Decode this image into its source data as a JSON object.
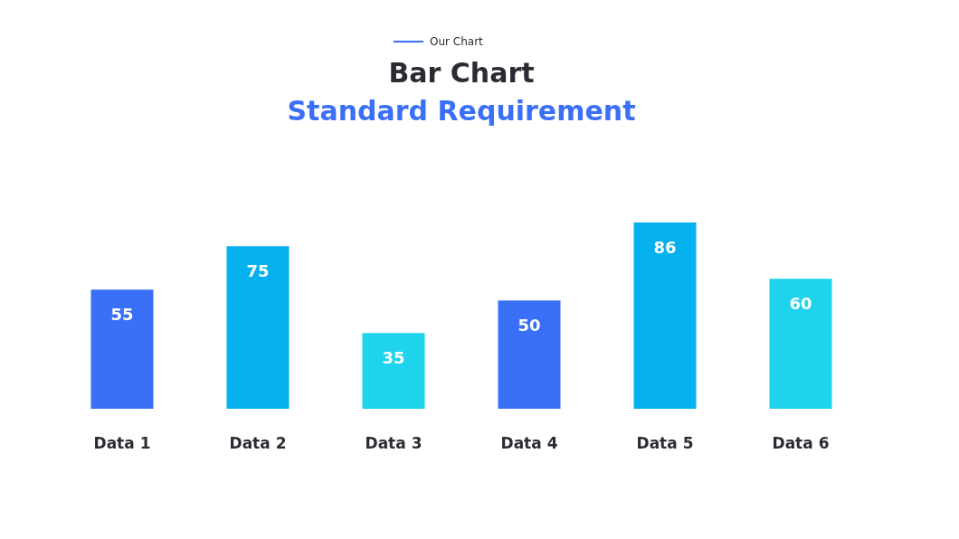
{
  "chart_data": {
    "type": "bar",
    "title": "Bar Chart",
    "subtitle": "Standard Requirement",
    "annotations": [
      "Our Chart"
    ],
    "categories": [
      "Data 1",
      "Data 2",
      "Data 3",
      "Data 4",
      "Data 5",
      "Data 6"
    ],
    "values": [
      55,
      75,
      35,
      50,
      86,
      60
    ],
    "colors": [
      "#3a6ff7",
      "#05b0ef",
      "#1fd3ec",
      "#3a6ff7",
      "#05b0ef",
      "#1fd3ec"
    ],
    "data_labels": true,
    "grid": false
  }
}
